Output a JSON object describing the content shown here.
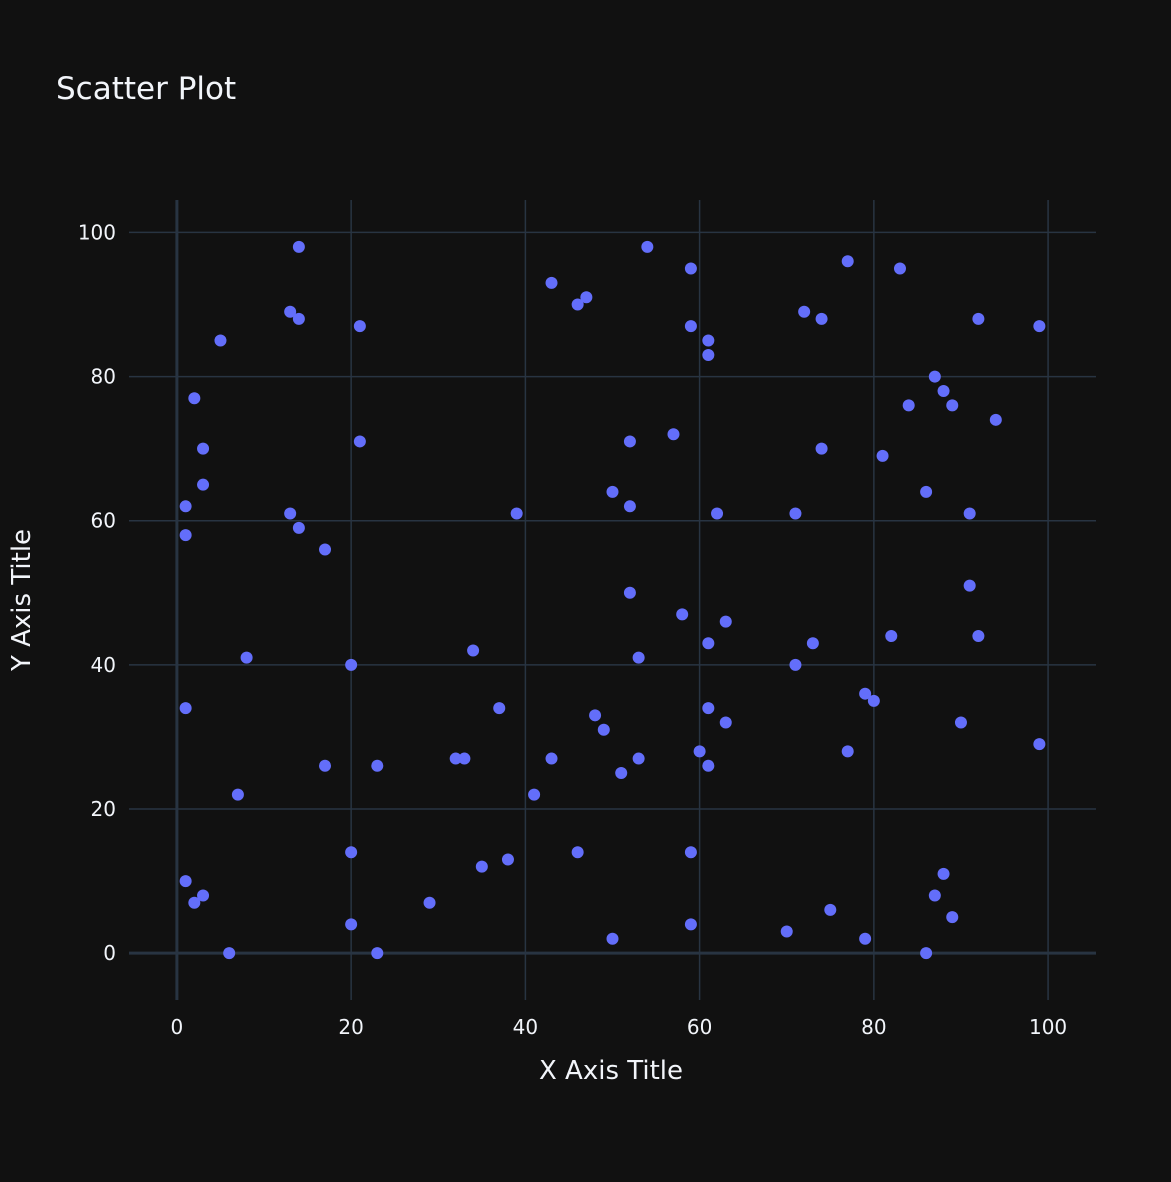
{
  "chart_data": {
    "type": "scatter",
    "title": "Scatter Plot",
    "xlabel": "X Axis Title",
    "ylabel": "Y Axis Title",
    "xlim": [
      -5.5,
      105.5
    ],
    "ylim": [
      -6.5,
      104.5
    ],
    "x_ticks": [
      0,
      20,
      40,
      60,
      80,
      100
    ],
    "y_ticks": [
      0,
      20,
      40,
      60,
      80,
      100
    ],
    "grid": true,
    "legend": "none",
    "marker_color": "#636efa",
    "background_color": "#111111",
    "points": [
      {
        "x": 1,
        "y": 62
      },
      {
        "x": 1,
        "y": 58
      },
      {
        "x": 1,
        "y": 34
      },
      {
        "x": 1,
        "y": 10
      },
      {
        "x": 2,
        "y": 77
      },
      {
        "x": 2,
        "y": 7
      },
      {
        "x": 3,
        "y": 70
      },
      {
        "x": 3,
        "y": 65
      },
      {
        "x": 3,
        "y": 8
      },
      {
        "x": 5,
        "y": 85
      },
      {
        "x": 6,
        "y": 0
      },
      {
        "x": 7,
        "y": 22
      },
      {
        "x": 8,
        "y": 41
      },
      {
        "x": 13,
        "y": 89
      },
      {
        "x": 13,
        "y": 61
      },
      {
        "x": 14,
        "y": 98
      },
      {
        "x": 14,
        "y": 88
      },
      {
        "x": 14,
        "y": 59
      },
      {
        "x": 17,
        "y": 56
      },
      {
        "x": 17,
        "y": 26
      },
      {
        "x": 20,
        "y": 40
      },
      {
        "x": 20,
        "y": 14
      },
      {
        "x": 20,
        "y": 4
      },
      {
        "x": 21,
        "y": 87
      },
      {
        "x": 21,
        "y": 71
      },
      {
        "x": 23,
        "y": 26
      },
      {
        "x": 23,
        "y": 0
      },
      {
        "x": 29,
        "y": 7
      },
      {
        "x": 32,
        "y": 27
      },
      {
        "x": 33,
        "y": 27
      },
      {
        "x": 34,
        "y": 42
      },
      {
        "x": 35,
        "y": 12
      },
      {
        "x": 37,
        "y": 34
      },
      {
        "x": 38,
        "y": 13
      },
      {
        "x": 39,
        "y": 61
      },
      {
        "x": 41,
        "y": 22
      },
      {
        "x": 43,
        "y": 93
      },
      {
        "x": 43,
        "y": 27
      },
      {
        "x": 46,
        "y": 90
      },
      {
        "x": 46,
        "y": 14
      },
      {
        "x": 47,
        "y": 91
      },
      {
        "x": 48,
        "y": 33
      },
      {
        "x": 49,
        "y": 31
      },
      {
        "x": 50,
        "y": 64
      },
      {
        "x": 50,
        "y": 2
      },
      {
        "x": 51,
        "y": 25
      },
      {
        "x": 52,
        "y": 71
      },
      {
        "x": 52,
        "y": 62
      },
      {
        "x": 52,
        "y": 50
      },
      {
        "x": 53,
        "y": 41
      },
      {
        "x": 53,
        "y": 27
      },
      {
        "x": 54,
        "y": 98
      },
      {
        "x": 57,
        "y": 72
      },
      {
        "x": 58,
        "y": 47
      },
      {
        "x": 59,
        "y": 95
      },
      {
        "x": 59,
        "y": 87
      },
      {
        "x": 59,
        "y": 14
      },
      {
        "x": 59,
        "y": 4
      },
      {
        "x": 60,
        "y": 28
      },
      {
        "x": 61,
        "y": 85
      },
      {
        "x": 61,
        "y": 83
      },
      {
        "x": 61,
        "y": 43
      },
      {
        "x": 61,
        "y": 34
      },
      {
        "x": 61,
        "y": 26
      },
      {
        "x": 62,
        "y": 61
      },
      {
        "x": 63,
        "y": 46
      },
      {
        "x": 63,
        "y": 32
      },
      {
        "x": 70,
        "y": 3
      },
      {
        "x": 71,
        "y": 61
      },
      {
        "x": 71,
        "y": 40
      },
      {
        "x": 72,
        "y": 89
      },
      {
        "x": 73,
        "y": 43
      },
      {
        "x": 74,
        "y": 88
      },
      {
        "x": 74,
        "y": 70
      },
      {
        "x": 75,
        "y": 6
      },
      {
        "x": 77,
        "y": 96
      },
      {
        "x": 77,
        "y": 28
      },
      {
        "x": 79,
        "y": 36
      },
      {
        "x": 79,
        "y": 2
      },
      {
        "x": 80,
        "y": 35
      },
      {
        "x": 81,
        "y": 69
      },
      {
        "x": 82,
        "y": 44
      },
      {
        "x": 83,
        "y": 95
      },
      {
        "x": 84,
        "y": 76
      },
      {
        "x": 86,
        "y": 64
      },
      {
        "x": 86,
        "y": 0
      },
      {
        "x": 87,
        "y": 80
      },
      {
        "x": 87,
        "y": 8
      },
      {
        "x": 88,
        "y": 78
      },
      {
        "x": 88,
        "y": 11
      },
      {
        "x": 89,
        "y": 76
      },
      {
        "x": 89,
        "y": 5
      },
      {
        "x": 90,
        "y": 32
      },
      {
        "x": 91,
        "y": 61
      },
      {
        "x": 91,
        "y": 51
      },
      {
        "x": 92,
        "y": 88
      },
      {
        "x": 92,
        "y": 44
      },
      {
        "x": 94,
        "y": 74
      },
      {
        "x": 99,
        "y": 87
      },
      {
        "x": 99,
        "y": 29
      }
    ]
  }
}
